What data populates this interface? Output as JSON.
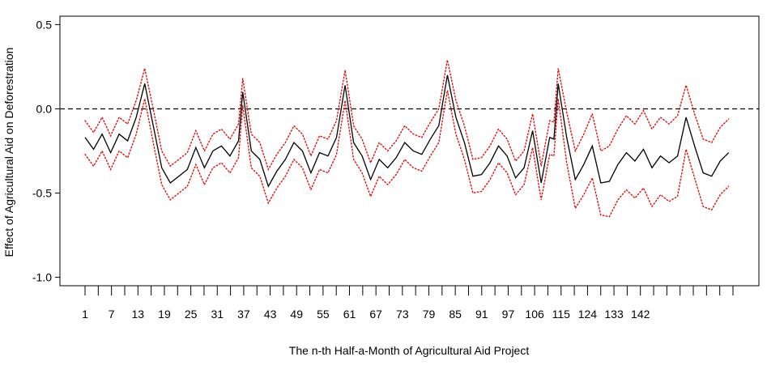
{
  "chart_data": {
    "type": "line",
    "xlabel": "The n-th Half-a-Month of Agricultural Aid Project",
    "ylabel": "Effect of Agricultural Aid on Deforestration",
    "ylim": [
      -1.05,
      0.55
    ],
    "yticks": [
      0.5,
      0.0,
      -0.5,
      -1.0
    ],
    "ytick_labels": [
      "0.5",
      "0.0",
      "-0.5",
      "-1.0"
    ],
    "xlim": [
      1,
      153
    ],
    "x_tick_labels": [
      "1",
      "7",
      "13",
      "19",
      "25",
      "31",
      "37",
      "43",
      "49",
      "55",
      "61",
      "67",
      "73",
      "79",
      "85",
      "91",
      "97",
      "106",
      "115",
      "124",
      "133",
      "142"
    ],
    "reference_line": {
      "y": 0.0,
      "style": "dashed",
      "color": "#000000"
    },
    "grid": false,
    "series": [
      {
        "role": "estimate",
        "style": "solid",
        "color": "#000000",
        "x": [
          1,
          3,
          5,
          7,
          9,
          11,
          13,
          15,
          17,
          19,
          21,
          23,
          25,
          27,
          29,
          31,
          33,
          35,
          37,
          38,
          40,
          42,
          44,
          46,
          48,
          50,
          52,
          54,
          56,
          58,
          60,
          62,
          64,
          66,
          68,
          70,
          72,
          74,
          76,
          78,
          80,
          82,
          84,
          86,
          88,
          90,
          92,
          94,
          96,
          98,
          100,
          102,
          104,
          106,
          108,
          110,
          111,
          112,
          114,
          116,
          118,
          120,
          122,
          124,
          126,
          128,
          130,
          132,
          134,
          136,
          138,
          140,
          142,
          144,
          146,
          148,
          150,
          152
        ],
        "values": [
          -0.17,
          -0.24,
          -0.15,
          -0.26,
          -0.15,
          -0.19,
          -0.05,
          0.15,
          -0.1,
          -0.35,
          -0.44,
          -0.4,
          -0.36,
          -0.23,
          -0.35,
          -0.25,
          -0.22,
          -0.28,
          -0.19,
          0.1,
          -0.25,
          -0.3,
          -0.46,
          -0.37,
          -0.3,
          -0.2,
          -0.25,
          -0.38,
          -0.26,
          -0.28,
          -0.17,
          0.14,
          -0.2,
          -0.28,
          -0.42,
          -0.3,
          -0.35,
          -0.29,
          -0.2,
          -0.25,
          -0.27,
          -0.18,
          -0.1,
          0.2,
          -0.05,
          -0.2,
          -0.4,
          -0.39,
          -0.32,
          -0.22,
          -0.28,
          -0.41,
          -0.35,
          -0.13,
          -0.44,
          -0.17,
          -0.18,
          0.15,
          -0.17,
          -0.42,
          -0.33,
          -0.22,
          -0.44,
          -0.43,
          -0.33,
          -0.26,
          -0.31,
          -0.24,
          -0.35,
          -0.28,
          -0.32,
          -0.28,
          -0.05,
          -0.22,
          -0.38,
          -0.4,
          -0.31,
          -0.26
        ]
      },
      {
        "role": "upper-bound",
        "style": "dotted",
        "color": "#e01010",
        "x": [
          1,
          3,
          5,
          7,
          9,
          11,
          13,
          15,
          17,
          19,
          21,
          23,
          25,
          27,
          29,
          31,
          33,
          35,
          37,
          38,
          40,
          42,
          44,
          46,
          48,
          50,
          52,
          54,
          56,
          58,
          60,
          62,
          64,
          66,
          68,
          70,
          72,
          74,
          76,
          78,
          80,
          82,
          84,
          86,
          88,
          90,
          92,
          94,
          96,
          98,
          100,
          102,
          104,
          106,
          108,
          110,
          111,
          112,
          114,
          116,
          118,
          120,
          122,
          124,
          126,
          128,
          130,
          132,
          134,
          136,
          138,
          140,
          142,
          144,
          146,
          148,
          150,
          152
        ],
        "values": [
          -0.07,
          -0.14,
          -0.05,
          -0.16,
          -0.05,
          -0.09,
          0.05,
          0.24,
          0.0,
          -0.25,
          -0.34,
          -0.3,
          -0.26,
          -0.13,
          -0.25,
          -0.15,
          -0.12,
          -0.18,
          -0.09,
          0.18,
          -0.15,
          -0.2,
          -0.36,
          -0.27,
          -0.2,
          -0.1,
          -0.15,
          -0.28,
          -0.16,
          -0.18,
          -0.07,
          0.23,
          -0.1,
          -0.18,
          -0.32,
          -0.2,
          -0.25,
          -0.19,
          -0.1,
          -0.15,
          -0.17,
          -0.08,
          0.0,
          0.29,
          0.05,
          -0.1,
          -0.3,
          -0.29,
          -0.22,
          -0.12,
          -0.18,
          -0.31,
          -0.25,
          -0.03,
          -0.34,
          -0.07,
          -0.08,
          0.24,
          -0.02,
          -0.25,
          -0.15,
          -0.03,
          -0.25,
          -0.22,
          -0.12,
          -0.04,
          -0.09,
          -0.01,
          -0.12,
          -0.05,
          -0.09,
          -0.04,
          0.14,
          -0.03,
          -0.18,
          -0.2,
          -0.11,
          -0.06
        ]
      },
      {
        "role": "lower-bound",
        "style": "dotted",
        "color": "#e01010",
        "x": [
          1,
          3,
          5,
          7,
          9,
          11,
          13,
          15,
          17,
          19,
          21,
          23,
          25,
          27,
          29,
          31,
          33,
          35,
          37,
          38,
          40,
          42,
          44,
          46,
          48,
          50,
          52,
          54,
          56,
          58,
          60,
          62,
          64,
          66,
          68,
          70,
          72,
          74,
          76,
          78,
          80,
          82,
          84,
          86,
          88,
          90,
          92,
          94,
          96,
          98,
          100,
          102,
          104,
          106,
          108,
          110,
          111,
          112,
          114,
          116,
          118,
          120,
          122,
          124,
          126,
          128,
          130,
          132,
          134,
          136,
          138,
          140,
          142,
          144,
          146,
          148,
          150,
          152
        ],
        "values": [
          -0.27,
          -0.34,
          -0.25,
          -0.36,
          -0.25,
          -0.29,
          -0.15,
          0.06,
          -0.2,
          -0.45,
          -0.54,
          -0.5,
          -0.46,
          -0.33,
          -0.45,
          -0.35,
          -0.32,
          -0.38,
          -0.29,
          0.02,
          -0.35,
          -0.4,
          -0.56,
          -0.47,
          -0.4,
          -0.3,
          -0.35,
          -0.48,
          -0.36,
          -0.38,
          -0.27,
          0.05,
          -0.3,
          -0.38,
          -0.52,
          -0.4,
          -0.45,
          -0.39,
          -0.3,
          -0.35,
          -0.37,
          -0.28,
          -0.2,
          0.11,
          -0.15,
          -0.3,
          -0.5,
          -0.49,
          -0.42,
          -0.32,
          -0.38,
          -0.51,
          -0.45,
          -0.23,
          -0.54,
          -0.27,
          -0.28,
          0.06,
          -0.32,
          -0.59,
          -0.51,
          -0.41,
          -0.63,
          -0.64,
          -0.54,
          -0.48,
          -0.53,
          -0.47,
          -0.58,
          -0.51,
          -0.55,
          -0.52,
          -0.24,
          -0.41,
          -0.58,
          -0.6,
          -0.51,
          -0.46
        ]
      }
    ]
  }
}
